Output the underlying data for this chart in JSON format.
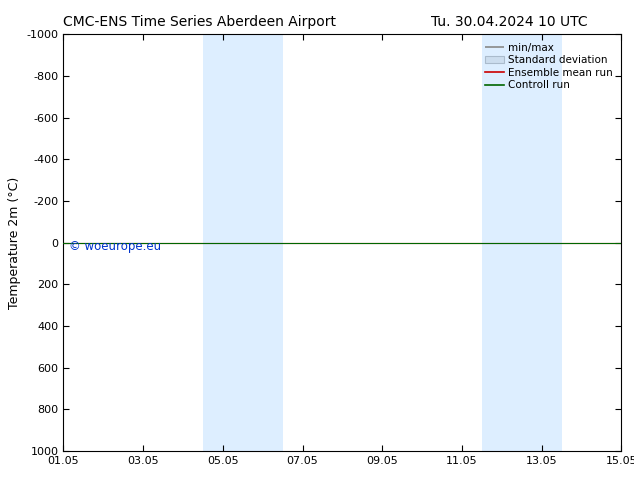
{
  "title_left": "CMC-ENS Time Series Aberdeen Airport",
  "title_right": "Tu. 30.04.2024 10 UTC",
  "ylabel": "Temperature 2m (°C)",
  "watermark": "© woeurope.eu",
  "watermark_color": "#0033cc",
  "background_color": "#ffffff",
  "plot_bg_color": "#ffffff",
  "ylim_top": -1000,
  "ylim_bottom": 1000,
  "yticks": [
    -1000,
    -800,
    -600,
    -400,
    -200,
    0,
    200,
    400,
    600,
    800,
    1000
  ],
  "x_tick_labels": [
    "01.05",
    "03.05",
    "05.05",
    "07.05",
    "09.05",
    "11.05",
    "13.05",
    "15.05"
  ],
  "x_tick_positions": [
    0,
    2,
    4,
    6,
    8,
    10,
    12,
    14
  ],
  "shaded_regions": [
    {
      "start": 3.5,
      "end": 5.5,
      "color": "#ddeeff",
      "alpha": 1.0
    },
    {
      "start": 10.5,
      "end": 12.5,
      "color": "#ddeeff",
      "alpha": 1.0
    }
  ],
  "green_line_y": 0,
  "red_line_y": 0,
  "line_color_green": "#006600",
  "line_color_red": "#cc0000",
  "minmax_color": "#888888",
  "stddev_color": "#ccddee",
  "legend_entries": [
    "min/max",
    "Standard deviation",
    "Ensemble mean run",
    "Controll run"
  ],
  "title_fontsize": 10,
  "axis_fontsize": 8,
  "ylabel_fontsize": 9
}
